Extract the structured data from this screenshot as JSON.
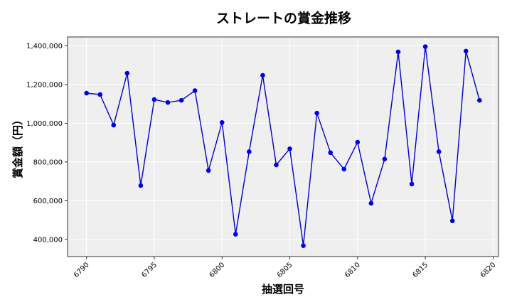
{
  "colors": {
    "line": "#0000cc",
    "marker": "#0000ee",
    "plot_bg": "#efefef",
    "grid": "#ffffff"
  },
  "chart_data": {
    "type": "line",
    "title": "ストレートの賞金推移",
    "xlabel": "抽選回号",
    "ylabel": "賞金額（円）",
    "xlim": [
      6788.6,
      6820.4
    ],
    "ylim": [
      312000,
      1445000
    ],
    "grid": true,
    "x_ticks": [
      6790,
      6795,
      6800,
      6805,
      6810,
      6815,
      6820
    ],
    "x_tick_labels": [
      "6790",
      "6795",
      "6800",
      "6805",
      "6810",
      "6815",
      "6820"
    ],
    "y_ticks": [
      400000,
      600000,
      800000,
      1000000,
      1200000,
      1400000
    ],
    "y_tick_labels": [
      "400,000",
      "600,000",
      "800,000",
      "1,000,000",
      "1,200,000",
      "1,400,000"
    ],
    "x": [
      6790,
      6791,
      6792,
      6793,
      6794,
      6795,
      6796,
      6797,
      6798,
      6799,
      6800,
      6801,
      6802,
      6803,
      6804,
      6805,
      6806,
      6807,
      6808,
      6809,
      6810,
      6811,
      6812,
      6813,
      6814,
      6815,
      6816,
      6817,
      6818,
      6819
    ],
    "series": [
      {
        "values": [
          1155000,
          1148000,
          990000,
          1258000,
          678000,
          1122000,
          1107000,
          1118000,
          1168000,
          756000,
          1004000,
          427000,
          853000,
          1247000,
          785000,
          868000,
          368000,
          1052000,
          848000,
          763000,
          902000,
          587000,
          815000,
          1368000,
          686000,
          1395000,
          853000,
          496000,
          1372000,
          1118000
        ]
      }
    ]
  }
}
